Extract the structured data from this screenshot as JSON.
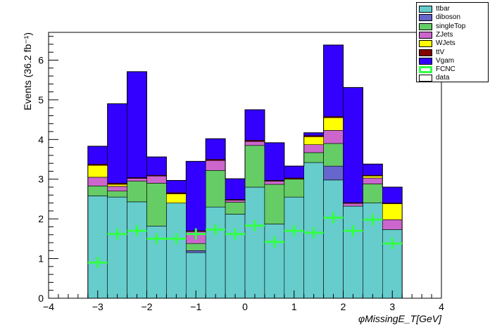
{
  "chart_data": {
    "type": "bar",
    "stacked": true,
    "x_edges": [
      -3.2,
      -2.8,
      -2.4,
      -2.0,
      -1.6,
      -1.2,
      -0.8,
      -0.4,
      0.0,
      0.4,
      0.8,
      1.2,
      1.6,
      2.0,
      2.4,
      2.8,
      3.2
    ],
    "series": [
      {
        "name": "ttbar",
        "color": "#66cccc",
        "values": [
          2.58,
          2.55,
          2.43,
          1.82,
          2.4,
          1.15,
          2.3,
          2.12,
          2.8,
          1.87,
          2.55,
          3.42,
          2.98,
          2.32,
          2.4,
          1.73
        ]
      },
      {
        "name": "diboson",
        "color": "#6666cc",
        "values": [
          0.0,
          0.0,
          0.0,
          0.0,
          0.0,
          0.05,
          0.0,
          0.0,
          0.0,
          0.0,
          0.0,
          0.0,
          0.35,
          0.0,
          0.0,
          0.0
        ]
      },
      {
        "name": "singleTop",
        "color": "#66cc66",
        "values": [
          0.25,
          0.15,
          0.52,
          1.08,
          0.0,
          0.18,
          0.92,
          0.3,
          1.05,
          1.0,
          0.45,
          0.25,
          0.57,
          0.0,
          0.48,
          0.0
        ]
      },
      {
        "name": "ZJets",
        "color": "#cc66cc",
        "values": [
          0.22,
          0.12,
          0.07,
          0.18,
          0.0,
          0.3,
          0.25,
          0.05,
          0.1,
          0.08,
          0.0,
          0.2,
          0.33,
          0.07,
          0.15,
          0.25
        ]
      },
      {
        "name": "WJets",
        "color": "#ffff00",
        "values": [
          0.3,
          0.05,
          0.0,
          0.0,
          0.23,
          0.0,
          0.0,
          0.0,
          0.0,
          0.0,
          0.0,
          0.2,
          0.32,
          0.0,
          0.05,
          0.4
        ]
      },
      {
        "name": "ttV",
        "color": "#800000",
        "values": [
          0.03,
          0.03,
          0.02,
          0.02,
          0.03,
          0.02,
          0.03,
          0.02,
          0.03,
          0.02,
          0.03,
          0.03,
          0.03,
          0.02,
          0.02,
          0.02
        ]
      },
      {
        "name": "Vgam",
        "color": "#3300ff",
        "values": [
          0.45,
          2.0,
          2.67,
          0.46,
          0.31,
          1.75,
          0.52,
          0.52,
          0.77,
          0.95,
          0.3,
          0.07,
          1.8,
          2.9,
          0.28,
          0.4
        ]
      }
    ],
    "fcnc": {
      "name": "FCNC",
      "color": "#33ff44",
      "values": [
        0.9,
        1.62,
        1.7,
        1.5,
        1.5,
        1.62,
        1.73,
        1.62,
        1.83,
        1.42,
        1.7,
        1.65,
        2.03,
        1.7,
        1.98,
        1.38
      ]
    },
    "legend": [
      {
        "name": "ttbar",
        "color": "#66cccc"
      },
      {
        "name": "diboson",
        "color": "#6666cc"
      },
      {
        "name": "singleTop",
        "color": "#66cc66"
      },
      {
        "name": "ZJets",
        "color": "#cc66cc"
      },
      {
        "name": "WJets",
        "color": "#ffff00"
      },
      {
        "name": "ttV",
        "color": "#800000"
      },
      {
        "name": "Vgam",
        "color": "#3300ff"
      },
      {
        "name": "FCNC",
        "color": "#33ff44",
        "style": "hollow"
      },
      {
        "name": "data",
        "color": "#ffffff"
      }
    ],
    "legend_position": "top-right",
    "xlim": [
      -4,
      4
    ],
    "ylim": [
      0,
      6.7
    ],
    "x_ticks": [
      -4,
      -3,
      -2,
      -1,
      0,
      1,
      2,
      3,
      4
    ],
    "x_tick_labels": [
      "−4",
      "−3",
      "−2",
      "−1",
      "0",
      "1",
      "2",
      "3",
      "4"
    ],
    "y_ticks": [
      0,
      1,
      2,
      3,
      4,
      5,
      6
    ],
    "y_tick_labels": [
      "0",
      "1",
      "2",
      "3",
      "4",
      "5",
      "6"
    ],
    "xlabel": "φMissingE_T[GeV]",
    "ylabel": "Events (36.2 fb⁻¹)",
    "grid": false
  }
}
